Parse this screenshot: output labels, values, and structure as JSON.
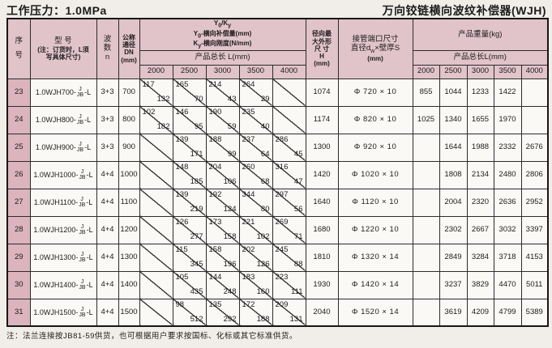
{
  "page": {
    "top_left_title": "工作压力：1.0MPa",
    "top_right_title": "万向铰链横向波纹补偿器(WJH)",
    "footnote": "注：法兰连接按JB81-59供货，也可根据用户要求按国标、化标或其它标准供货。"
  },
  "colors": {
    "header_pink": "#e1c3ca",
    "serial_pink": "#dbb4be",
    "page_bg": "#f1eee9",
    "grid_line": "#2c2c2c"
  },
  "table": {
    "headers": {
      "serial_l1": "序",
      "serial_l2": "号",
      "model_l1": "型  号",
      "model_l2": "(注：订货时，L须",
      "model_l3": "写具体尺寸)",
      "waves_l1": "波",
      "waves_l2": "数",
      "waves_l3": "n",
      "dn_l1": "公称",
      "dn_l2": "通径",
      "dn_l3": "DN",
      "dn_l4": "(mm)",
      "yk_t1": "Y",
      "yk_t2": "0",
      "yk_t3": "/K",
      "yk_t4": "y",
      "yk_s1a": "Y",
      "yk_s1b": "0",
      "yk_s1c": "-横向补偿量(mm)",
      "yk_s2a": "K",
      "yk_s2b": "y",
      "yk_s2c": "-横向刚度(N/mm)",
      "length_label": "产品总长 L(mm)",
      "lengths": [
        "2000",
        "2500",
        "3000",
        "3500",
        "4000"
      ],
      "h_l1": "径向最",
      "h_l2": "大外形",
      "h_l3": "尺 寸",
      "h_l4": "H",
      "h_l5": "(mm)",
      "pipe_l1": "接管端口尺寸",
      "pipe_l2a": "直径d",
      "pipe_l2b": "w",
      "pipe_l2c": "×壁厚S",
      "pipe_l3": "(mm)",
      "weight_title": "产品重量(kg)",
      "weight_length_label": "产品总长L(mm)"
    },
    "rows": [
      {
        "no": "23",
        "model_prefix": "1.0WJH700-",
        "model_sup": "J",
        "model_sub": "JB",
        "model_suffix": "-L",
        "waves": "3+3",
        "dn": "700",
        "yk": [
          {
            "top": "117",
            "bottom": "132"
          },
          {
            "top": "165",
            "bottom": "70"
          },
          {
            "top": "214",
            "bottom": "43"
          },
          {
            "top": "264",
            "bottom": "29"
          },
          {
            "top": "",
            "bottom": ""
          }
        ],
        "h": "1074",
        "pipe": "Φ 720 × 10",
        "weights": [
          "855",
          "1044",
          "1233",
          "1422",
          ""
        ]
      },
      {
        "no": "24",
        "model_prefix": "1.0WJH800-",
        "model_sup": "J",
        "model_sub": "JB",
        "model_suffix": "-L",
        "waves": "3+3",
        "dn": "800",
        "yk": [
          {
            "top": "102",
            "bottom": "182"
          },
          {
            "top": "146",
            "bottom": "95"
          },
          {
            "top": "190",
            "bottom": "59"
          },
          {
            "top": "235",
            "bottom": "40"
          },
          {
            "top": "",
            "bottom": ""
          }
        ],
        "h": "1174",
        "pipe": "Φ 820 × 10",
        "weights": [
          "1025",
          "1340",
          "1655",
          "1970",
          ""
        ]
      },
      {
        "no": "25",
        "model_prefix": "1.0WJH900-",
        "model_sup": "J",
        "model_sub": "JB",
        "model_suffix": "-L",
        "waves": "3+3",
        "dn": "900",
        "yk": [
          {
            "top": "",
            "bottom": ""
          },
          {
            "top": "139",
            "bottom": "171"
          },
          {
            "top": "188",
            "bottom": "99"
          },
          {
            "top": "237",
            "bottom": "64"
          },
          {
            "top": "286",
            "bottom": "45"
          }
        ],
        "h": "1300",
        "pipe": "Φ 920 × 10",
        "weights": [
          "",
          "1644",
          "1988",
          "2332",
          "2676"
        ]
      },
      {
        "no": "26",
        "model_prefix": "1.0WJH1000-",
        "model_sup": "J",
        "model_sub": "JB",
        "model_suffix": "-L",
        "waves": "4+4",
        "dn": "1000",
        "yk": [
          {
            "top": "",
            "bottom": ""
          },
          {
            "top": "148",
            "bottom": "185"
          },
          {
            "top": "204",
            "bottom": "106"
          },
          {
            "top": "260",
            "bottom": "68"
          },
          {
            "top": "316",
            "bottom": "47"
          }
        ],
        "h": "1420",
        "pipe": "Φ 1020 × 10",
        "weights": [
          "",
          "1808",
          "2134",
          "2480",
          "2806"
        ]
      },
      {
        "no": "27",
        "model_prefix": "1.0WJH1100-",
        "model_sup": "J",
        "model_sub": "JB",
        "model_suffix": "-L",
        "waves": "4+4",
        "dn": "1100",
        "yk": [
          {
            "top": "",
            "bottom": ""
          },
          {
            "top": "139",
            "bottom": "219"
          },
          {
            "top": "192",
            "bottom": "124"
          },
          {
            "top": "344",
            "bottom": "80"
          },
          {
            "top": "297",
            "bottom": "56"
          }
        ],
        "h": "1640",
        "pipe": "Φ 1120 × 10",
        "weights": [
          "",
          "2004",
          "2320",
          "2636",
          "2952"
        ]
      },
      {
        "no": "28",
        "model_prefix": "1.0WJH1200-",
        "model_sup": "J",
        "model_sub": "JB",
        "model_suffix": "-L",
        "waves": "4+4",
        "dn": "1200",
        "yk": [
          {
            "top": "",
            "bottom": ""
          },
          {
            "top": "126",
            "bottom": "277"
          },
          {
            "top": "173",
            "bottom": "158"
          },
          {
            "top": "221",
            "bottom": "102"
          },
          {
            "top": "269",
            "bottom": "71"
          }
        ],
        "h": "1680",
        "pipe": "Φ 1220 × 10",
        "weights": [
          "",
          "2302",
          "2667",
          "3032",
          "3397"
        ]
      },
      {
        "no": "29",
        "model_prefix": "1.0WJH1300-",
        "model_sup": "J",
        "model_sub": "JB",
        "model_suffix": "-L",
        "waves": "4+4",
        "dn": "1300",
        "yk": [
          {
            "top": "",
            "bottom": ""
          },
          {
            "top": "115",
            "bottom": "345"
          },
          {
            "top": "158",
            "bottom": "196"
          },
          {
            "top": "202",
            "bottom": "126"
          },
          {
            "top": "245",
            "bottom": "88"
          }
        ],
        "h": "1810",
        "pipe": "Φ 1320 × 14",
        "weights": [
          "",
          "2849",
          "3284",
          "3718",
          "4153"
        ]
      },
      {
        "no": "30",
        "model_prefix": "1.0WJH1400-",
        "model_sup": "J",
        "model_sub": "JB",
        "model_suffix": "-L",
        "waves": "4+4",
        "dn": "1400",
        "yk": [
          {
            "top": "",
            "bottom": ""
          },
          {
            "top": "105",
            "bottom": "435"
          },
          {
            "top": "144",
            "bottom": "248"
          },
          {
            "top": "183",
            "bottom": "160"
          },
          {
            "top": "223",
            "bottom": "111"
          }
        ],
        "h": "1930",
        "pipe": "Φ 1420 × 14",
        "weights": [
          "",
          "3237",
          "3829",
          "4470",
          "5011"
        ]
      },
      {
        "no": "31",
        "model_prefix": "1.0WJH1500-",
        "model_sup": "J",
        "model_sub": "JB",
        "model_suffix": "-L",
        "waves": "4+4",
        "dn": "1500",
        "yk": [
          {
            "top": "",
            "bottom": ""
          },
          {
            "top": "98",
            "bottom": "512"
          },
          {
            "top": "135",
            "bottom": "292"
          },
          {
            "top": "172",
            "bottom": "188"
          },
          {
            "top": "209",
            "bottom": "131"
          }
        ],
        "h": "2040",
        "pipe": "Φ 1520 × 14",
        "weights": [
          "",
          "3619",
          "4209",
          "4799",
          "5389"
        ]
      }
    ]
  }
}
